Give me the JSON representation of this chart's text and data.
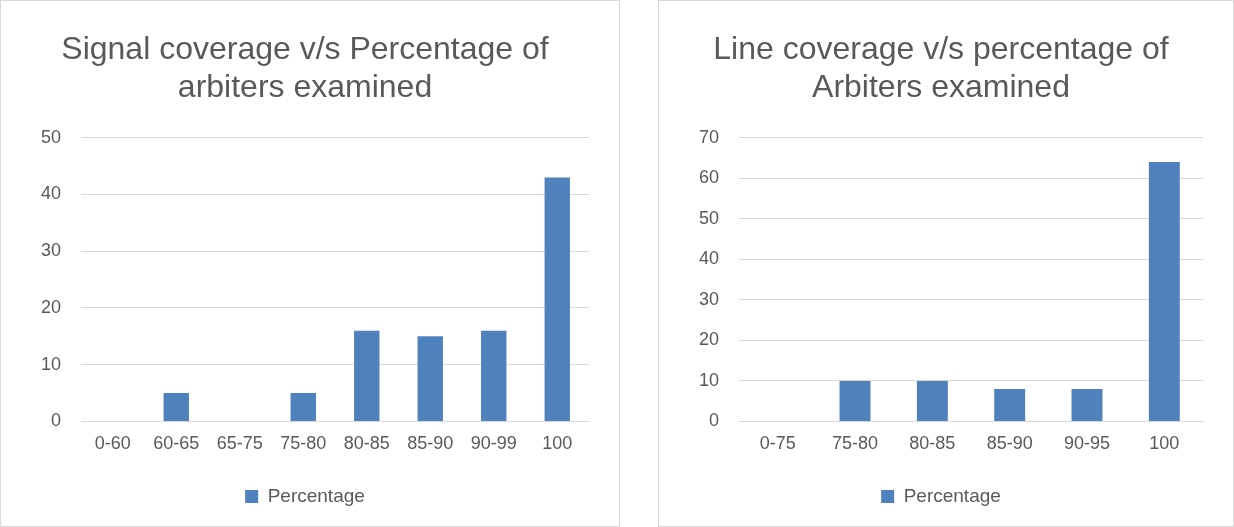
{
  "chart_data": [
    {
      "type": "bar",
      "title": "Signal coverage v/s Percentage of arbiters examined",
      "categories": [
        "0-60",
        "60-65",
        "65-75",
        "75-80",
        "80-85",
        "85-90",
        "90-99",
        "100"
      ],
      "series": [
        {
          "name": "Percentage",
          "color": "#4f81bd",
          "values": [
            0,
            5,
            0,
            5,
            16,
            15,
            16,
            43
          ]
        }
      ],
      "ylim": [
        0,
        50
      ],
      "yticks": [
        0,
        10,
        20,
        30,
        40,
        50
      ],
      "grid": "y",
      "legend": "bottom"
    },
    {
      "type": "bar",
      "title": "Line coverage v/s percentage of Arbiters examined",
      "categories": [
        "0-75",
        "75-80",
        "80-85",
        "85-90",
        "90-95",
        "100"
      ],
      "series": [
        {
          "name": "Percentage",
          "color": "#4f81bd",
          "values": [
            0,
            10,
            10,
            8,
            8,
            64
          ]
        }
      ],
      "ylim": [
        0,
        70
      ],
      "yticks": [
        0,
        10,
        20,
        30,
        40,
        50,
        60,
        70
      ],
      "grid": "y",
      "legend": "bottom"
    }
  ]
}
